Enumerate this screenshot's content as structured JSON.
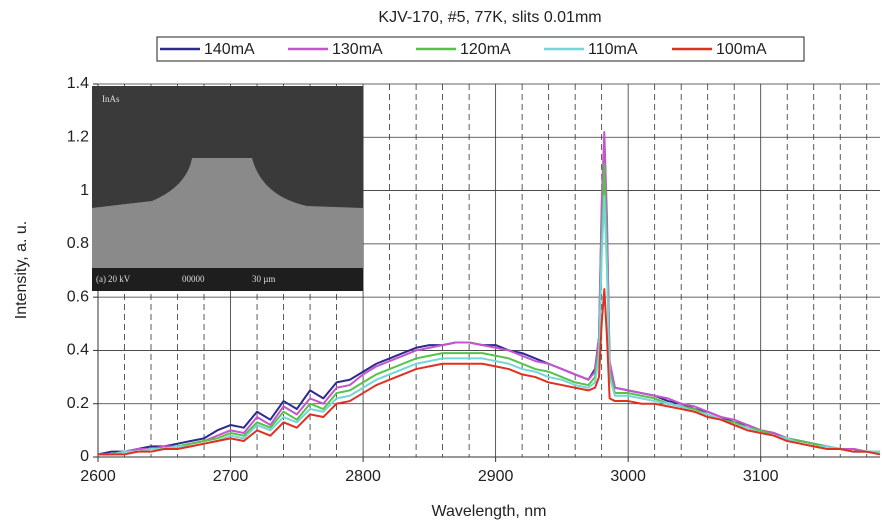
{
  "chart_data": {
    "type": "line",
    "title": "KJV-170, #5,  77K, slits 0.01mm",
    "x_label": "Wavelength, nm",
    "y_label": "Intensity, a. u.",
    "xlim": [
      2600,
      3190
    ],
    "ylim": [
      0,
      1.4
    ],
    "xticks": [
      2600,
      2700,
      2800,
      2900,
      3000,
      3100
    ],
    "yticks": [
      0,
      0.2,
      0.4,
      0.6,
      0.8,
      1,
      1.2,
      1.4
    ],
    "xminorgrid": [
      2620,
      2640,
      2660,
      2680,
      2720,
      2740,
      2760,
      2780,
      2820,
      2840,
      2860,
      2880,
      2920,
      2940,
      2960,
      2980,
      3020,
      3040,
      3060,
      3080,
      3120,
      3140,
      3160,
      3180
    ],
    "grid": true,
    "legend": "top",
    "inset": {
      "label": "InAs",
      "caption": [
        "(a)",
        "20 kV",
        "00000",
        "30 µm"
      ]
    },
    "x": [
      2600,
      2610,
      2620,
      2630,
      2640,
      2650,
      2660,
      2670,
      2680,
      2690,
      2700,
      2710,
      2720,
      2730,
      2740,
      2750,
      2760,
      2770,
      2780,
      2790,
      2800,
      2810,
      2820,
      2830,
      2840,
      2850,
      2860,
      2870,
      2880,
      2890,
      2900,
      2910,
      2920,
      2930,
      2940,
      2950,
      2960,
      2970,
      2975,
      2978,
      2980,
      2982,
      2984,
      2986,
      2990,
      3000,
      3010,
      3020,
      3030,
      3040,
      3050,
      3060,
      3070,
      3080,
      3090,
      3100,
      3110,
      3120,
      3130,
      3140,
      3150,
      3160,
      3170,
      3180,
      3190
    ],
    "series": [
      {
        "name": "140mA",
        "color": "#2e2a8e",
        "values": [
          0.01,
          0.02,
          0.02,
          0.03,
          0.04,
          0.04,
          0.05,
          0.06,
          0.07,
          0.1,
          0.12,
          0.11,
          0.17,
          0.14,
          0.21,
          0.18,
          0.25,
          0.22,
          0.28,
          0.29,
          0.32,
          0.35,
          0.37,
          0.39,
          0.41,
          0.42,
          0.42,
          0.43,
          0.43,
          0.42,
          0.42,
          0.4,
          0.39,
          0.37,
          0.35,
          0.33,
          0.31,
          0.29,
          0.33,
          0.45,
          0.9,
          1.18,
          0.85,
          0.35,
          0.26,
          0.25,
          0.24,
          0.23,
          0.21,
          0.2,
          0.18,
          0.17,
          0.15,
          0.13,
          0.12,
          0.1,
          0.09,
          0.07,
          0.06,
          0.05,
          0.04,
          0.03,
          0.03,
          0.02,
          0.02
        ]
      },
      {
        "name": "130mA",
        "color": "#c455cc",
        "values": [
          0.01,
          0.01,
          0.02,
          0.03,
          0.03,
          0.04,
          0.04,
          0.05,
          0.06,
          0.08,
          0.1,
          0.09,
          0.15,
          0.12,
          0.19,
          0.16,
          0.22,
          0.2,
          0.26,
          0.27,
          0.31,
          0.34,
          0.36,
          0.38,
          0.4,
          0.41,
          0.42,
          0.43,
          0.43,
          0.42,
          0.41,
          0.4,
          0.38,
          0.36,
          0.35,
          0.33,
          0.31,
          0.29,
          0.32,
          0.45,
          0.95,
          1.22,
          0.9,
          0.36,
          0.26,
          0.25,
          0.24,
          0.23,
          0.22,
          0.2,
          0.19,
          0.17,
          0.15,
          0.14,
          0.12,
          0.1,
          0.09,
          0.07,
          0.06,
          0.05,
          0.04,
          0.03,
          0.03,
          0.02,
          0.02
        ]
      },
      {
        "name": "120mA",
        "color": "#56c24a",
        "values": [
          0.01,
          0.01,
          0.02,
          0.02,
          0.03,
          0.03,
          0.04,
          0.05,
          0.06,
          0.07,
          0.09,
          0.08,
          0.13,
          0.11,
          0.17,
          0.14,
          0.2,
          0.18,
          0.24,
          0.25,
          0.28,
          0.31,
          0.33,
          0.35,
          0.37,
          0.38,
          0.39,
          0.39,
          0.39,
          0.39,
          0.38,
          0.37,
          0.35,
          0.33,
          0.32,
          0.3,
          0.28,
          0.27,
          0.3,
          0.4,
          0.8,
          1.1,
          0.75,
          0.32,
          0.24,
          0.24,
          0.23,
          0.22,
          0.2,
          0.19,
          0.18,
          0.16,
          0.14,
          0.13,
          0.11,
          0.1,
          0.08,
          0.07,
          0.06,
          0.05,
          0.04,
          0.03,
          0.02,
          0.02,
          0.02
        ]
      },
      {
        "name": "110mA",
        "color": "#74d6d6",
        "values": [
          0.01,
          0.01,
          0.02,
          0.02,
          0.03,
          0.03,
          0.04,
          0.04,
          0.05,
          0.06,
          0.08,
          0.07,
          0.12,
          0.1,
          0.15,
          0.13,
          0.18,
          0.17,
          0.22,
          0.23,
          0.26,
          0.29,
          0.31,
          0.33,
          0.35,
          0.36,
          0.37,
          0.37,
          0.37,
          0.37,
          0.36,
          0.35,
          0.33,
          0.32,
          0.3,
          0.29,
          0.27,
          0.26,
          0.28,
          0.38,
          0.75,
          0.98,
          0.7,
          0.3,
          0.23,
          0.23,
          0.22,
          0.21,
          0.2,
          0.19,
          0.17,
          0.16,
          0.14,
          0.12,
          0.11,
          0.09,
          0.08,
          0.07,
          0.05,
          0.04,
          0.04,
          0.03,
          0.02,
          0.02,
          0.02
        ]
      },
      {
        "name": "100mA",
        "color": "#e0301f",
        "values": [
          0.01,
          0.01,
          0.01,
          0.02,
          0.02,
          0.03,
          0.03,
          0.04,
          0.05,
          0.06,
          0.07,
          0.06,
          0.1,
          0.08,
          0.13,
          0.11,
          0.16,
          0.15,
          0.2,
          0.21,
          0.24,
          0.27,
          0.29,
          0.31,
          0.33,
          0.34,
          0.35,
          0.35,
          0.35,
          0.35,
          0.34,
          0.33,
          0.31,
          0.3,
          0.28,
          0.27,
          0.26,
          0.25,
          0.26,
          0.3,
          0.5,
          0.63,
          0.45,
          0.22,
          0.21,
          0.21,
          0.2,
          0.2,
          0.19,
          0.18,
          0.17,
          0.15,
          0.14,
          0.12,
          0.1,
          0.09,
          0.08,
          0.06,
          0.05,
          0.04,
          0.03,
          0.03,
          0.02,
          0.02,
          0.01
        ]
      }
    ]
  }
}
